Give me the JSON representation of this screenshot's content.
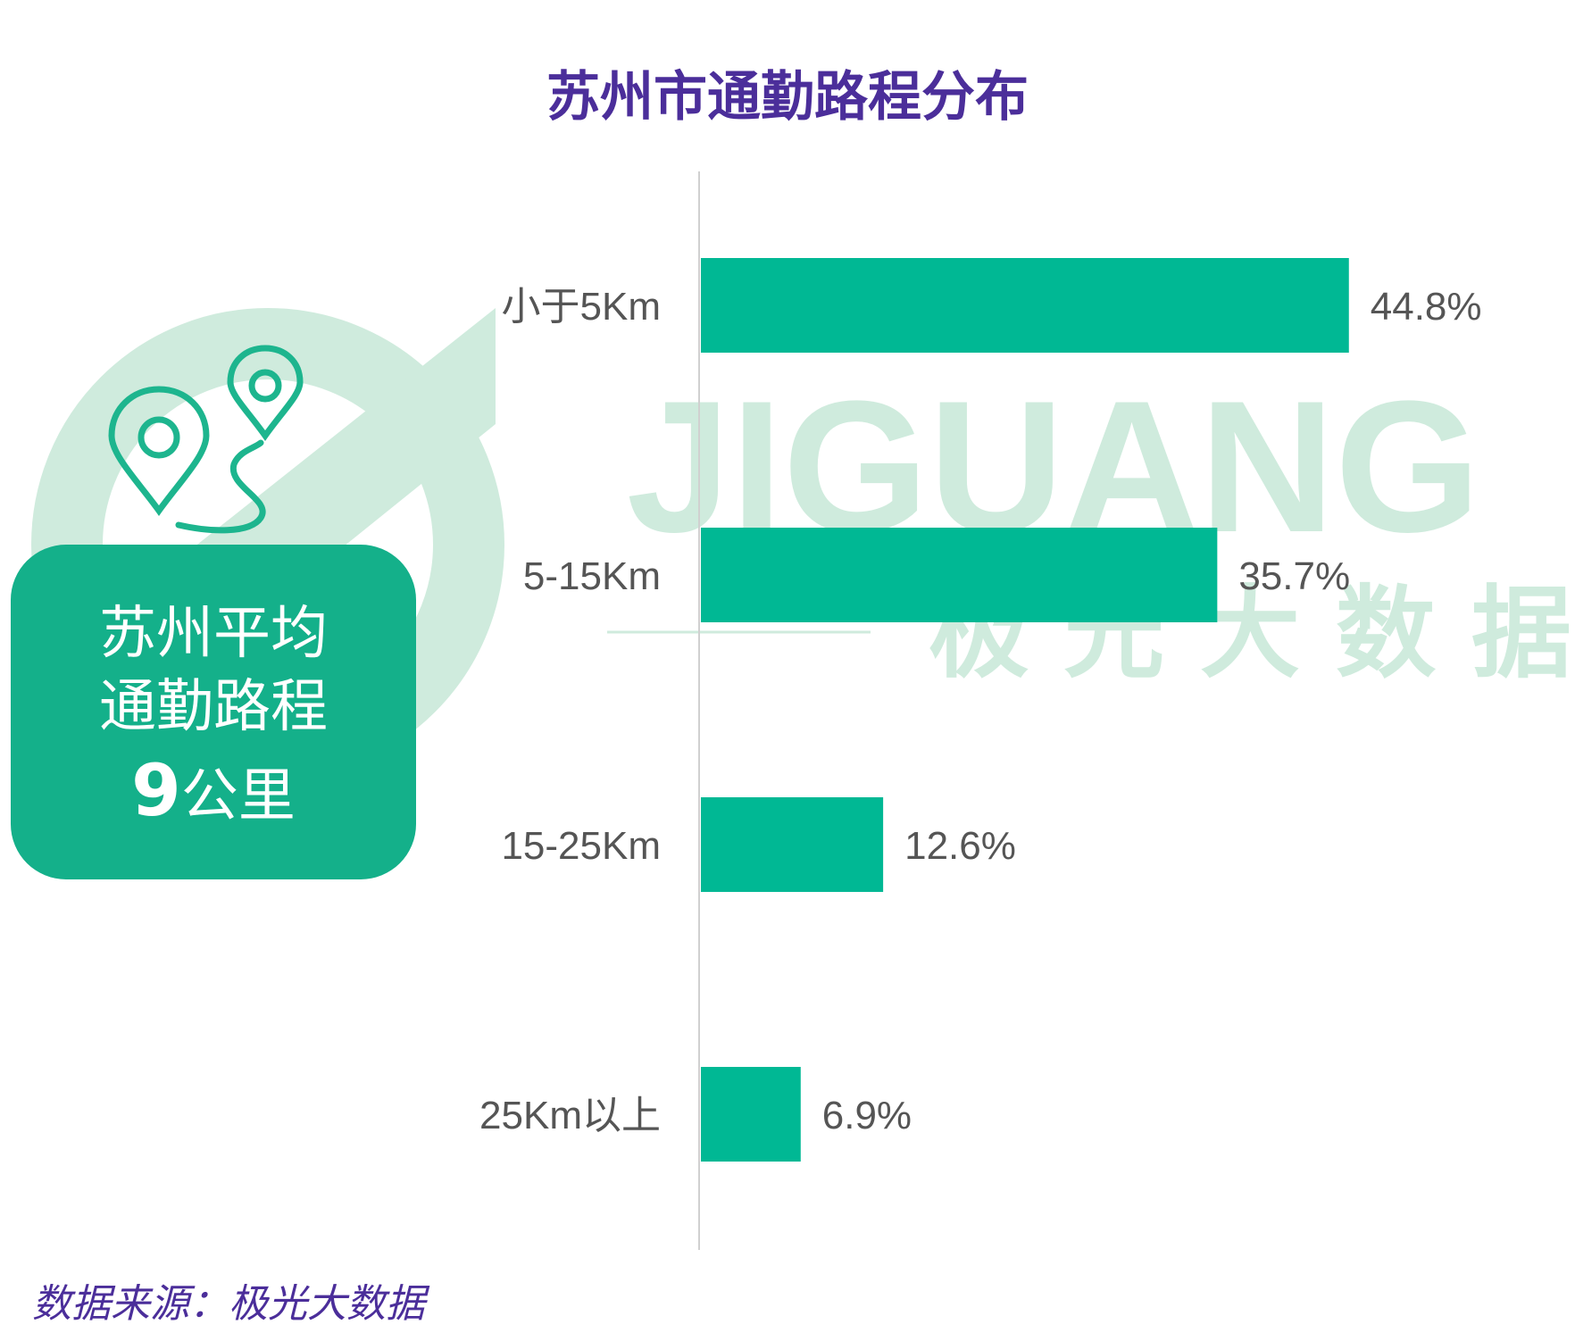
{
  "title": "苏州市通勤路程分布",
  "summary": {
    "line1": "苏州平均",
    "line2": "通勤路程",
    "number": "9",
    "unit": "公里"
  },
  "watermark": {
    "text_en": "JIGUANG",
    "text_cn": "极光大数据",
    "color": "#CFEBDD"
  },
  "icons": [
    "map-pin-icon",
    "map-pin-icon",
    "route-path-icon"
  ],
  "source": "数据来源：极光大数据",
  "colors": {
    "bar": "#00B894",
    "title": "#4B2E9A",
    "summary_bg": "#14B08A",
    "icon": "#1DB58E"
  },
  "chart_data": {
    "type": "bar",
    "orientation": "horizontal",
    "categories": [
      "小于5Km",
      "5-15Km",
      "15-25Km",
      "25Km以上"
    ],
    "values": [
      44.8,
      35.7,
      12.6,
      6.9
    ],
    "value_labels": [
      "44.8%",
      "35.7%",
      "12.6%",
      "6.9%"
    ],
    "title": "苏州市通勤路程分布",
    "xlabel": "",
    "ylabel": "",
    "xlim": [
      0,
      50
    ],
    "grid": false,
    "legend": "none"
  }
}
